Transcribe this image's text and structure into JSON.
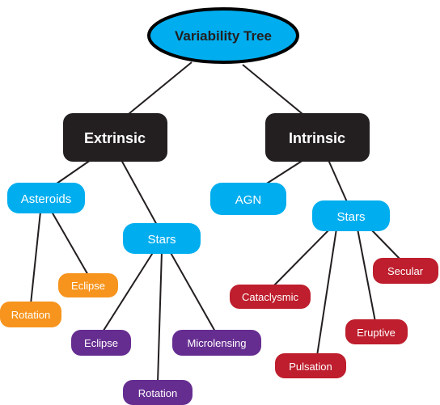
{
  "root": {
    "label": "Variability Tree"
  },
  "extrinsic": {
    "label": "Extrinsic",
    "asteroids": {
      "label": "Asteroids",
      "children": [
        "Eclipse",
        "Rotation"
      ]
    },
    "stars": {
      "label": "Stars",
      "children": [
        "Eclipse",
        "Rotation",
        "Microlensing"
      ]
    }
  },
  "intrinsic": {
    "label": "Intrinsic",
    "agn": {
      "label": "AGN"
    },
    "stars": {
      "label": "Stars",
      "children": [
        "Cataclysmic",
        "Pulsation",
        "Eruptive",
        "Secular"
      ]
    }
  },
  "colors": {
    "root_fill": "#00AEEF",
    "root_stroke": "#000000",
    "category_fill": "#231F20",
    "subgroup_fill": "#00AEEF",
    "asteroid_leaf_fill": "#F7941D",
    "extrinsic_star_leaf_fill": "#662D91",
    "intrinsic_star_leaf_fill": "#BE1E2D",
    "edge": "#231F20",
    "light_text": "#ffffff",
    "dark_text": "#231F20"
  }
}
